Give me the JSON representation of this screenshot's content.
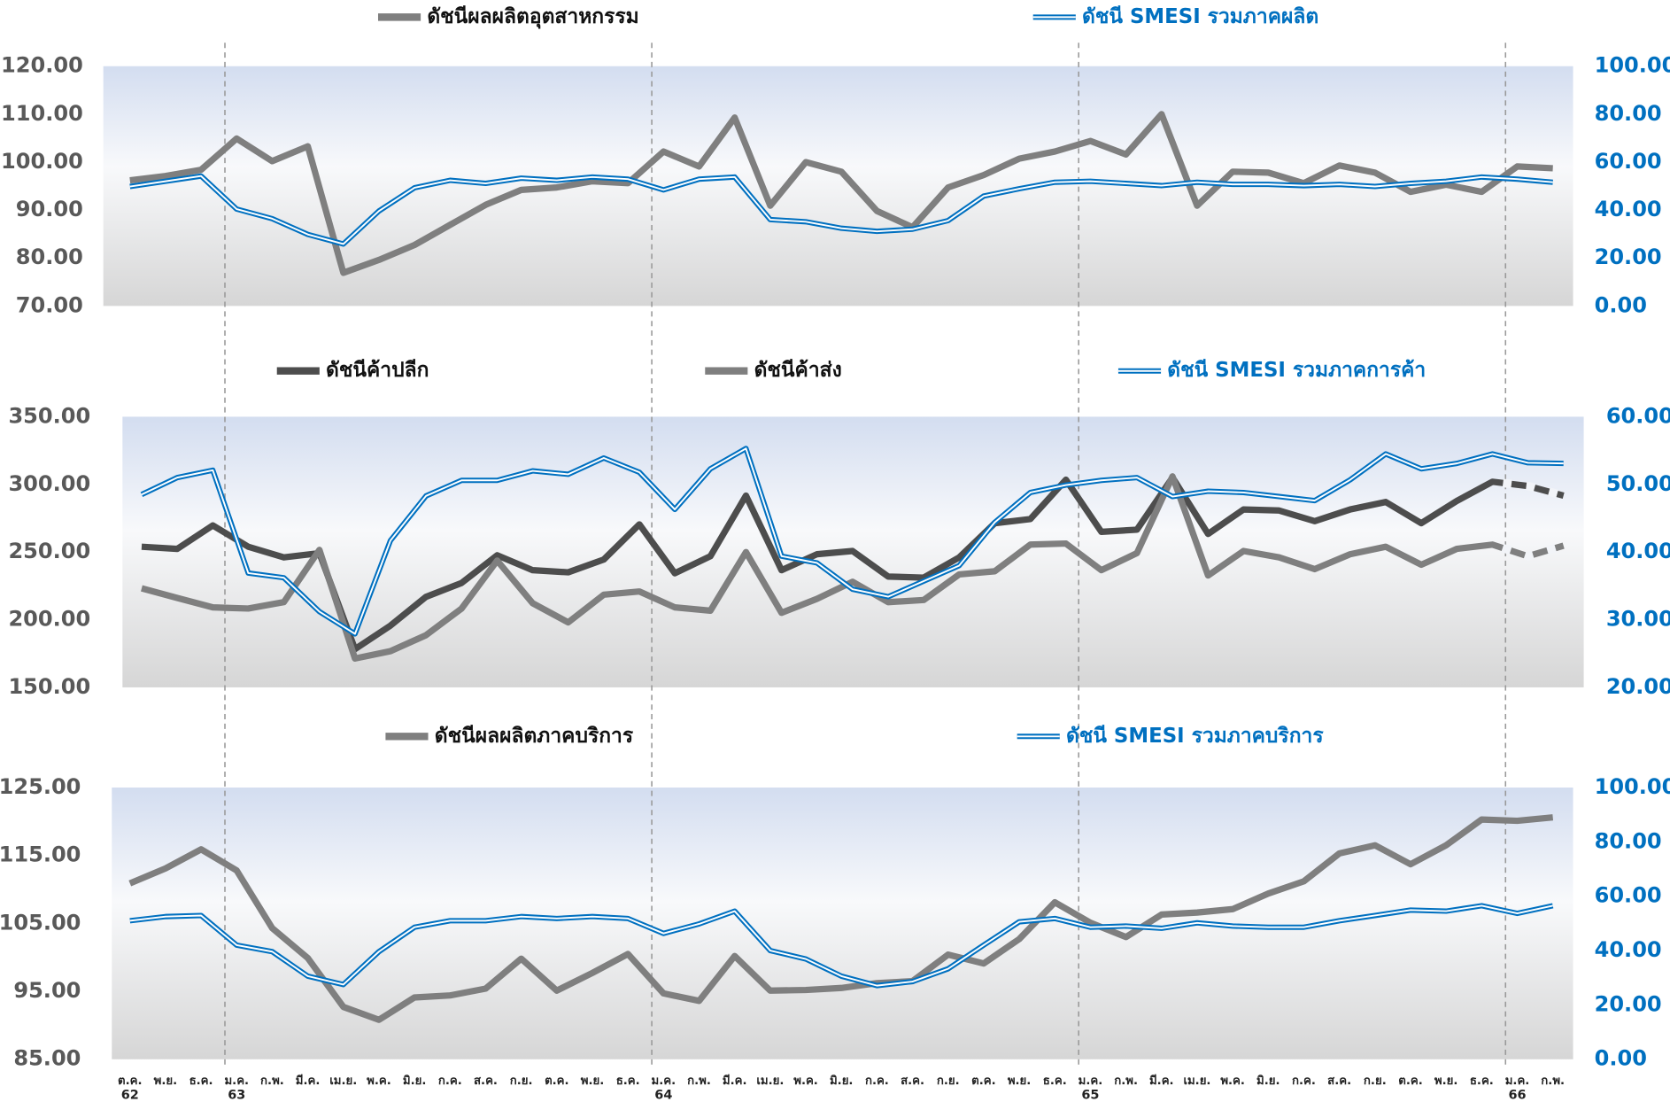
{
  "chart_data": [
    {
      "type": "line",
      "ylim": [
        70,
        120
      ],
      "yticks": [
        {
          "value": 70,
          "label": "70.00"
        },
        {
          "value": 80,
          "label": "80.00"
        },
        {
          "value": 90,
          "label": "90.00"
        },
        {
          "value": 100,
          "label": "100.00"
        },
        {
          "value": 110,
          "label": "110.00"
        },
        {
          "value": 120,
          "label": "120.00"
        }
      ],
      "y2lim": [
        0,
        100
      ],
      "y2ticks": [
        {
          "value": 0,
          "label": "0.00"
        },
        {
          "value": 20,
          "label": "20.00"
        },
        {
          "value": 40,
          "label": "40.00"
        },
        {
          "value": 60,
          "label": "60.00"
        },
        {
          "value": 80,
          "label": "80.00"
        },
        {
          "value": 100,
          "label": "100.00"
        }
      ],
      "grid": false,
      "series": [
        {
          "name": "ดัชนีผลผลิตอุตสาหกรรม",
          "color": "#7f7f7f",
          "values": [
            96.2,
            97.1,
            98.4,
            104.9,
            100.2,
            103.3,
            76.9,
            79.6,
            82.7,
            86.9,
            91.1,
            94.2,
            94.7,
            96.0,
            95.6,
            102.2,
            99.1,
            109.3,
            90.9,
            100.0,
            98.0,
            89.8,
            86.4,
            94.7,
            97.3,
            100.7,
            102.2,
            104.4,
            101.6,
            110.0,
            90.9,
            98.0,
            97.8,
            95.6,
            99.3,
            97.8,
            93.8,
            95.3,
            93.8,
            99.1,
            98.7
          ]
        },
        {
          "name": "ดัชนี SMESI รวมภาคผลิต",
          "color": "#0070c0",
          "axis": "y2",
          "line_style": "double",
          "values": [
            49.8,
            52.0,
            54.2,
            40.4,
            36.4,
            29.8,
            25.8,
            39.6,
            49.3,
            52.4,
            51.1,
            53.3,
            52.4,
            53.8,
            52.9,
            48.4,
            52.9,
            53.8,
            36.0,
            35.1,
            32.4,
            31.1,
            32.0,
            35.6,
            45.8,
            48.9,
            51.6,
            52.0,
            51.1,
            50.2,
            51.6,
            50.7,
            50.7,
            50.2,
            50.7,
            49.8,
            51.1,
            52.0,
            53.8,
            52.9,
            51.6
          ]
        }
      ]
    },
    {
      "type": "line",
      "ylim": [
        150,
        350
      ],
      "yticks": [
        {
          "value": 150,
          "label": "150.00"
        },
        {
          "value": 200,
          "label": "200.00"
        },
        {
          "value": 250,
          "label": "250.00"
        },
        {
          "value": 300,
          "label": "300.00"
        },
        {
          "value": 350,
          "label": "350.00"
        }
      ],
      "y2lim": [
        20,
        60
      ],
      "y2ticks": [
        {
          "value": 20,
          "label": "20.00"
        },
        {
          "value": 30,
          "label": "30.00"
        },
        {
          "value": 40,
          "label": "40.00"
        },
        {
          "value": 50,
          "label": "50.00"
        },
        {
          "value": 60,
          "label": "60.00"
        }
      ],
      "grid": false,
      "series": [
        {
          "name": "ดัชนีค้าปลีก",
          "color": "#4d4d4d",
          "dashed_from": 38,
          "values": [
            253.9,
            252.4,
            269.7,
            253.9,
            246.1,
            249.2,
            178.3,
            195.7,
            216.9,
            227.2,
            247.6,
            236.6,
            235.0,
            244.5,
            270.5,
            234.3,
            246.9,
            291.7,
            236.6,
            248.4,
            250.8,
            231.9,
            231.1,
            246.1,
            271.3,
            274.4,
            303.5,
            265.0,
            266.5,
            305.1,
            263.4,
            281.5,
            280.7,
            272.8,
            281.5,
            287.0,
            271.3,
            287.8,
            302.0,
            298.8,
            291.7
          ]
        },
        {
          "name": "ดัชนีค้าส่ง",
          "color": "#7f7f7f",
          "dashed_from": 38,
          "values": [
            223.2,
            216.1,
            209.1,
            208.3,
            213.0,
            251.6,
            171.3,
            176.8,
            188.6,
            208.3,
            243.7,
            212.2,
            198.0,
            218.5,
            220.9,
            209.1,
            206.7,
            250.0,
            205.1,
            215.4,
            228.0,
            213.0,
            214.6,
            233.5,
            235.8,
            255.5,
            256.3,
            236.6,
            249.2,
            305.9,
            232.7,
            250.8,
            246.1,
            237.4,
            248.4,
            253.9,
            240.6,
            252.4,
            255.5,
            246.9,
            254.7
          ]
        },
        {
          "name": "ดัชนี SMESI รวมภาคการค้า",
          "color": "#0070c0",
          "axis": "y2",
          "line_style": "double",
          "values": [
            48.5,
            51.0,
            52.1,
            36.9,
            36.2,
            31.2,
            27.9,
            41.7,
            48.3,
            50.6,
            50.6,
            52.0,
            51.5,
            53.9,
            51.8,
            46.3,
            52.3,
            55.3,
            39.4,
            38.4,
            34.5,
            33.4,
            35.7,
            38.0,
            44.4,
            48.8,
            49.9,
            50.6,
            51.0,
            48.2,
            49.0,
            48.8,
            48.2,
            47.6,
            50.7,
            54.5,
            52.3,
            53.1,
            54.5,
            53.2,
            53.1
          ]
        }
      ]
    },
    {
      "type": "line",
      "categories": [
        "ต.ค.",
        "พ.ย.",
        "ธ.ค.",
        "ม.ค.",
        "ก.พ.",
        "มี.ค.",
        "เม.ย.",
        "พ.ค.",
        "มิ.ย.",
        "ก.ค.",
        "ส.ค.",
        "ก.ย.",
        "ต.ค.",
        "พ.ย.",
        "ธ.ค.",
        "ม.ค.",
        "ก.พ.",
        "มี.ค.",
        "เม.ย.",
        "พ.ค.",
        "มิ.ย.",
        "ก.ค.",
        "ส.ค.",
        "ก.ย.",
        "ต.ค.",
        "พ.ย.",
        "ธ.ค.",
        "ม.ค.",
        "ก.พ.",
        "มี.ค.",
        "เม.ย.",
        "พ.ค.",
        "มิ.ย.",
        "ก.ค.",
        "ส.ค.",
        "ก.ย.",
        "ต.ค.",
        "พ.ย.",
        "ธ.ค.",
        "ม.ค.",
        "ก.พ."
      ],
      "category_years": [
        "62",
        null,
        null,
        "63",
        null,
        null,
        null,
        null,
        null,
        null,
        null,
        null,
        null,
        null,
        null,
        "64",
        null,
        null,
        null,
        null,
        null,
        null,
        null,
        null,
        null,
        null,
        null,
        "65",
        null,
        null,
        null,
        null,
        null,
        null,
        null,
        null,
        null,
        null,
        null,
        "66",
        null
      ],
      "ylim": [
        85,
        125
      ],
      "yticks": [
        {
          "value": 85,
          "label": "85.00"
        },
        {
          "value": 95,
          "label": "95.00"
        },
        {
          "value": 105,
          "label": "105.00"
        },
        {
          "value": 115,
          "label": "115.00"
        },
        {
          "value": 125,
          "label": "125.00"
        }
      ],
      "y2lim": [
        0,
        100
      ],
      "y2ticks": [
        {
          "value": 0,
          "label": "0.00"
        },
        {
          "value": 20,
          "label": "20.00"
        },
        {
          "value": 40,
          "label": "40.00"
        },
        {
          "value": 60,
          "label": "60.00"
        },
        {
          "value": 80,
          "label": "80.00"
        },
        {
          "value": 100,
          "label": "100.00"
        }
      ],
      "grid": false,
      "series": [
        {
          "name": "ดัชนีผลผลิตภาคบริการ",
          "color": "#7f7f7f",
          "values": [
            110.9,
            113.1,
            115.9,
            112.8,
            104.3,
            99.9,
            92.7,
            90.8,
            94.1,
            94.4,
            95.4,
            99.8,
            95.1,
            97.7,
            100.5,
            94.7,
            93.6,
            100.2,
            95.1,
            95.2,
            95.5,
            96.2,
            96.5,
            100.4,
            99.1,
            102.7,
            108.1,
            105.1,
            103.0,
            106.3,
            106.6,
            107.1,
            109.4,
            111.2,
            115.3,
            116.5,
            113.7,
            116.5,
            120.3,
            120.1,
            120.6
          ]
        },
        {
          "name": "ดัชนี SMESI รวมภาคบริการ",
          "color": "#0070c0",
          "axis": "y2",
          "line_style": "double",
          "values": [
            51.0,
            52.5,
            52.9,
            42.0,
            39.6,
            30.6,
            27.5,
            39.6,
            48.6,
            51.0,
            51.0,
            52.5,
            51.8,
            52.5,
            51.8,
            46.3,
            49.8,
            54.5,
            40.0,
            36.9,
            30.6,
            27.1,
            28.6,
            33.3,
            42.0,
            50.6,
            51.8,
            48.6,
            49.0,
            48.2,
            50.2,
            49.0,
            48.6,
            48.6,
            51.0,
            52.9,
            54.9,
            54.5,
            56.5,
            53.7,
            56.5
          ]
        }
      ]
    }
  ]
}
